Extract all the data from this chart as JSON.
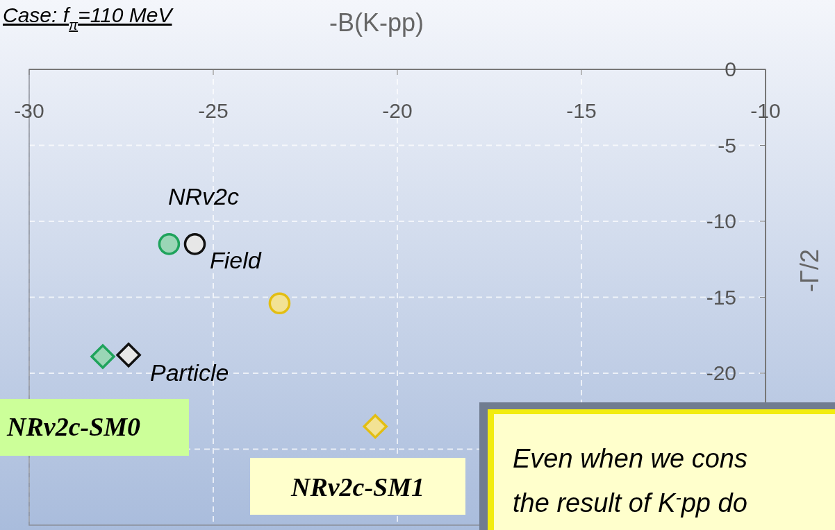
{
  "chart_data": {
    "type": "scatter",
    "title": "Case: f$_{π}$=110 MeV",
    "xlabel": "-B(K-pp)",
    "ylabel": "-Γ/2",
    "xlim": [
      -30,
      -10
    ],
    "xticks": [
      -30,
      -25,
      -20,
      -15,
      -10
    ],
    "ylim": [
      -30,
      0
    ],
    "yticks": [
      0,
      -5,
      -10,
      -15,
      -20,
      {
        "value": -25,
        "label": null
      }
    ],
    "grid": true,
    "marker": "circle",
    "series": [
      {
        "color": "#1fa35c",
        "x": [
          -26.2
        ],
        "values": [
          -11.5
        ]
      },
      {
        "color": "#111111",
        "x": [
          -25.5
        ],
        "values": [
          -11.5
        ]
      },
      {
        "color": "#e3be12",
        "x": [
          -23.2
        ],
        "values": [
          -15.4
        ]
      },
      {
        "marker": "diamond",
        "color": "#1fa35c",
        "x": [
          -28.0
        ],
        "values": [
          -18.9
        ]
      },
      {
        "marker": "diamond",
        "color": "#111111",
        "x": [
          -27.3
        ],
        "values": [
          -18.8
        ]
      },
      {
        "marker": "diamond",
        "color": "#e3be12",
        "x": [
          -20.6
        ],
        "values": [
          -23.5
        ]
      }
    ],
    "annotations": [
      "NRv2c",
      "Field",
      "Particle",
      "NRv2c-SM0",
      "NRv2c-SM1",
      "Even when we cons",
      "the result of K$^{-}$pp do"
    ]
  }
}
